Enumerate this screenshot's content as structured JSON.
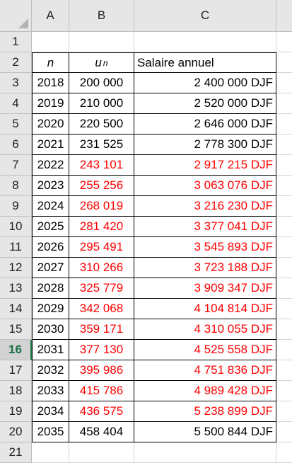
{
  "columns": [
    "A",
    "B",
    "C"
  ],
  "empty_row_number": "1",
  "header_row": {
    "number": "2",
    "a": "n",
    "b_main": "u",
    "b_sub": "n",
    "c": "Salaire annuel"
  },
  "last_row_number": "21",
  "rows": [
    {
      "num": "3",
      "year": "2018",
      "u": "200 000",
      "salary": "2 400 000 DJF",
      "red": false
    },
    {
      "num": "4",
      "year": "2019",
      "u": "210 000",
      "salary": "2 520 000 DJF",
      "red": false
    },
    {
      "num": "5",
      "year": "2020",
      "u": "220 500",
      "salary": "2 646 000 DJF",
      "red": false
    },
    {
      "num": "6",
      "year": "2021",
      "u": "231 525",
      "salary": "2 778 300 DJF",
      "red": false
    },
    {
      "num": "7",
      "year": "2022",
      "u": "243 101",
      "salary": "2 917 215 DJF",
      "red": true
    },
    {
      "num": "8",
      "year": "2023",
      "u": "255 256",
      "salary": "3 063 076 DJF",
      "red": true
    },
    {
      "num": "9",
      "year": "2024",
      "u": "268 019",
      "salary": "3 216 230 DJF",
      "red": true
    },
    {
      "num": "10",
      "year": "2025",
      "u": "281 420",
      "salary": "3 377 041 DJF",
      "red": true
    },
    {
      "num": "11",
      "year": "2026",
      "u": "295 491",
      "salary": "3 545 893 DJF",
      "red": true
    },
    {
      "num": "12",
      "year": "2027",
      "u": "310 266",
      "salary": "3 723 188 DJF",
      "red": true
    },
    {
      "num": "13",
      "year": "2028",
      "u": "325 779",
      "salary": "3 909 347 DJF",
      "red": true
    },
    {
      "num": "14",
      "year": "2029",
      "u": "342 068",
      "salary": "4 104 814 DJF",
      "red": true
    },
    {
      "num": "15",
      "year": "2030",
      "u": "359 171",
      "salary": "4 310 055 DJF",
      "red": true
    },
    {
      "num": "16",
      "year": "2031",
      "u": "377 130",
      "salary": "4 525 558 DJF",
      "red": true,
      "active": true
    },
    {
      "num": "17",
      "year": "2032",
      "u": "395 986",
      "salary": "4 751 836 DJF",
      "red": true
    },
    {
      "num": "18",
      "year": "2033",
      "u": "415 786",
      "salary": "4 989 428 DJF",
      "red": true
    },
    {
      "num": "19",
      "year": "2034",
      "u": "436 575",
      "salary": "5 238 899 DJF",
      "red": true
    },
    {
      "num": "20",
      "year": "2035",
      "u": "458 404",
      "salary": "5 500 844 DJF",
      "red": false
    }
  ],
  "colors": {
    "red_text": "#ff0000",
    "header_bg": "#e6e6e6",
    "active_row_header": "#1e7145"
  }
}
